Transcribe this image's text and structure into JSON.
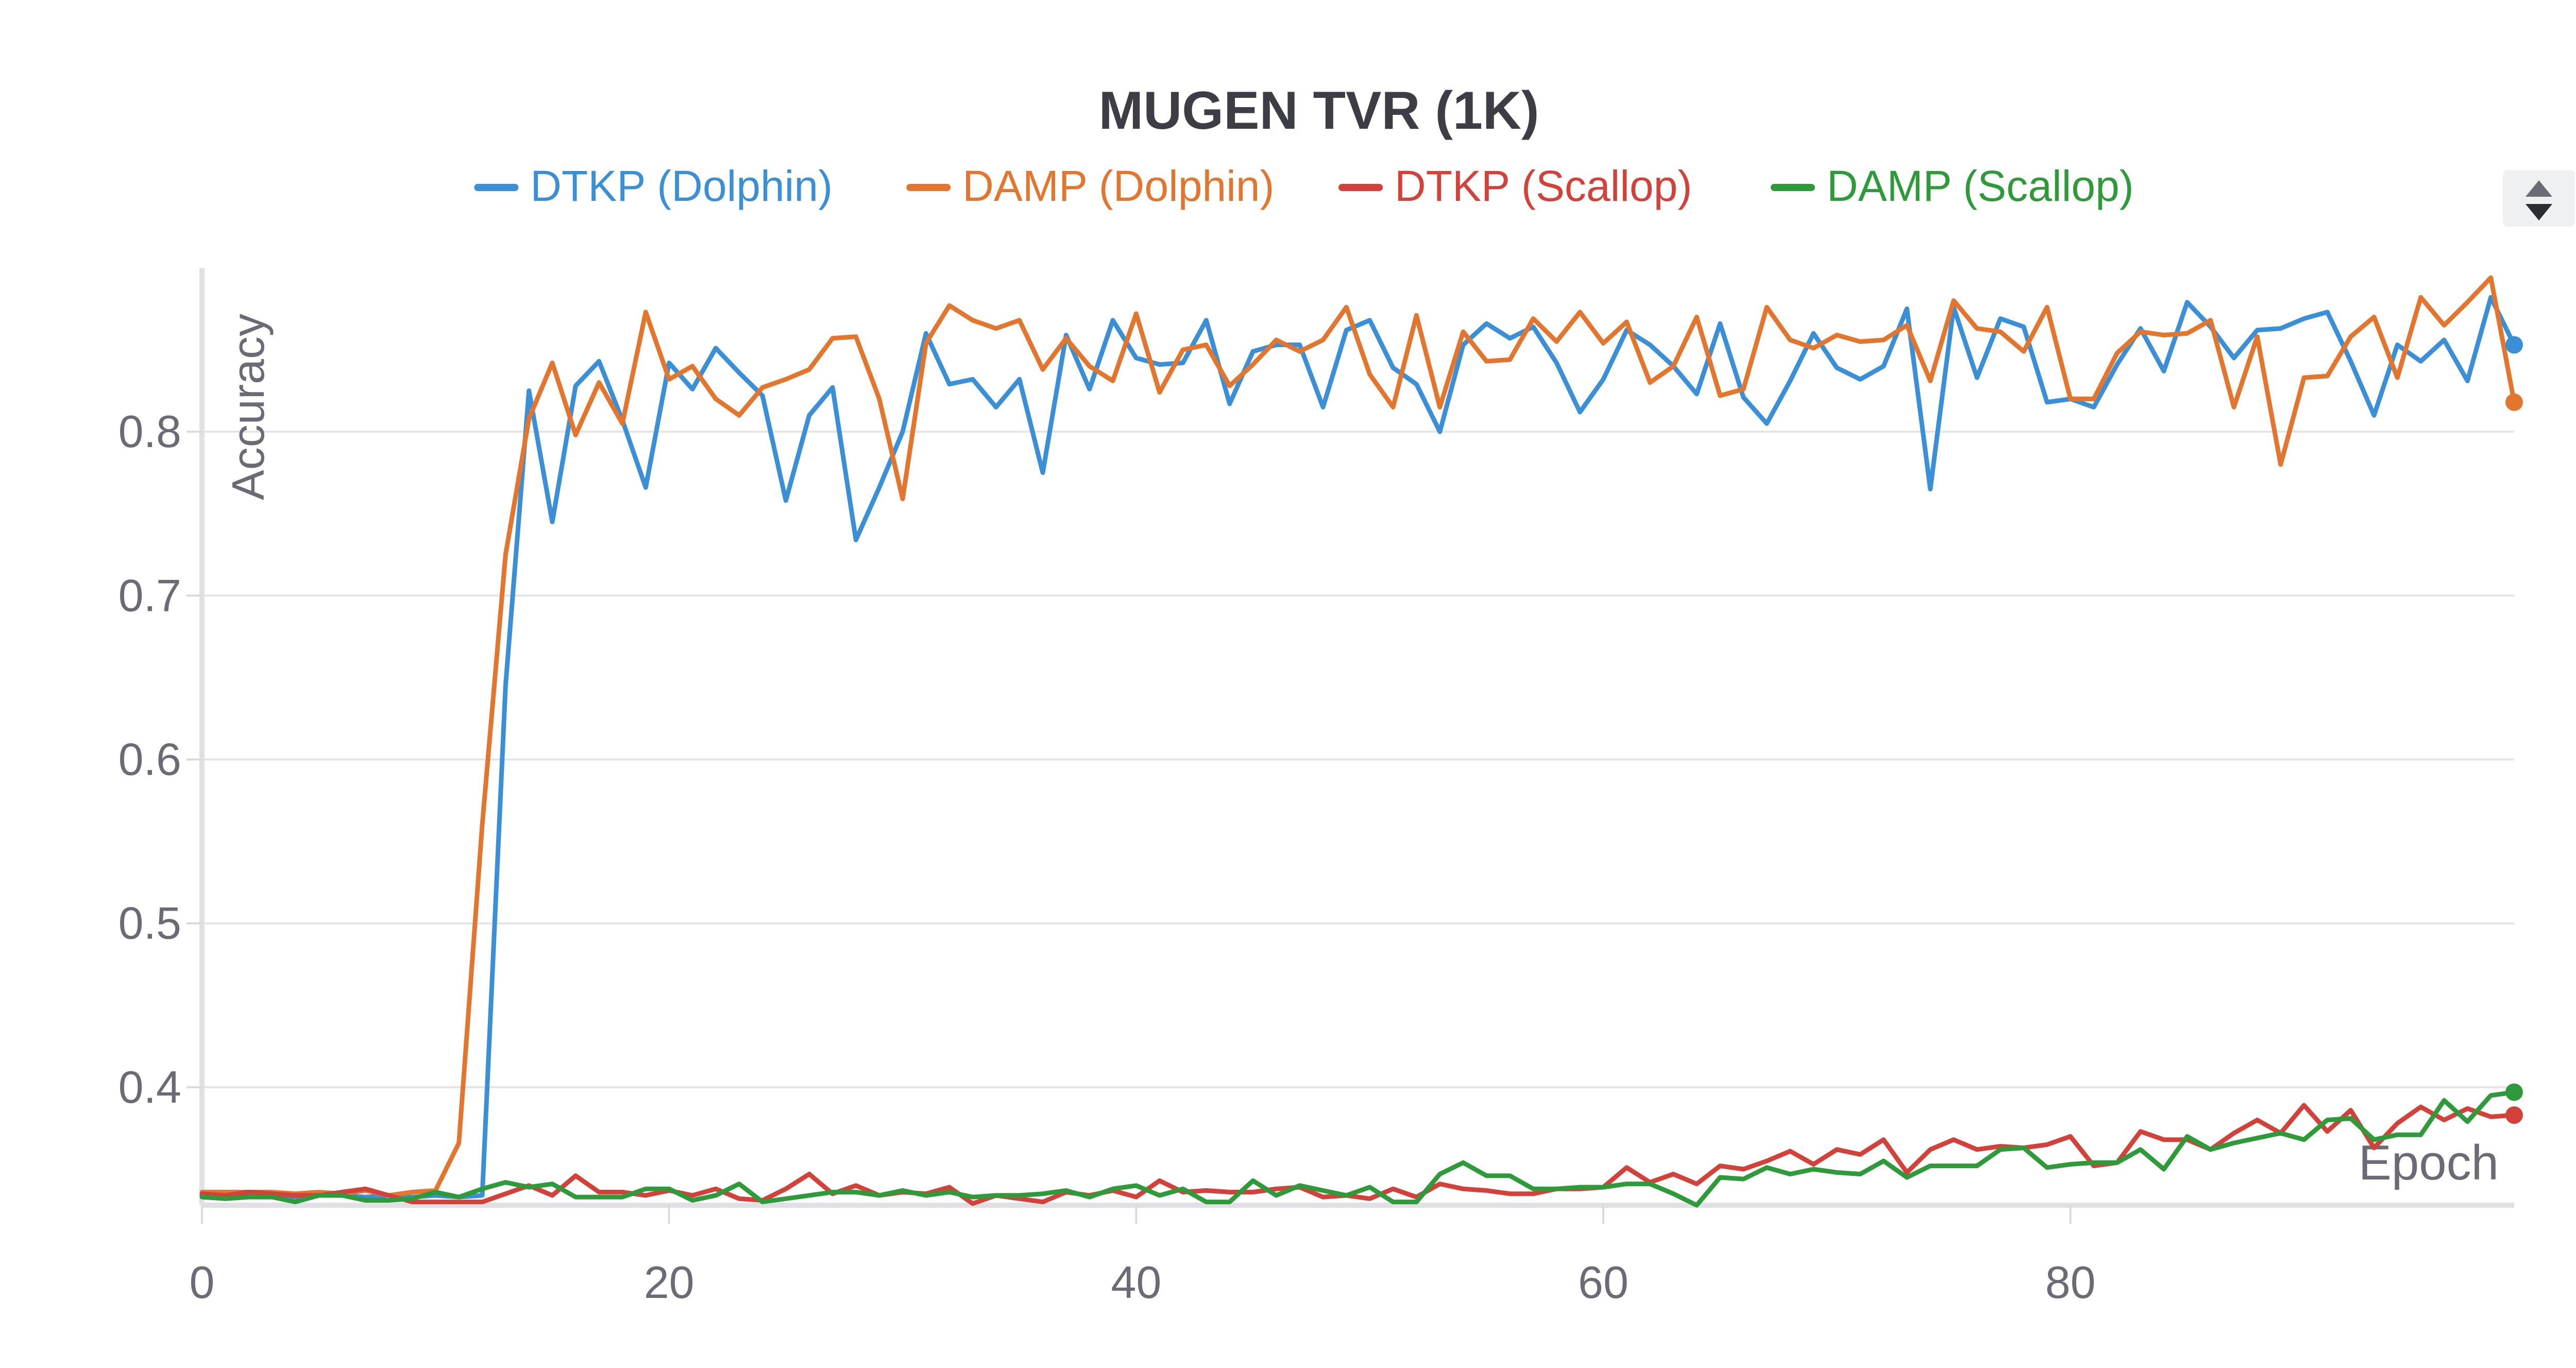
{
  "chart_data": {
    "type": "line",
    "title": "MUGEN TVR (1K)",
    "xlabel": "Epoch",
    "ylabel": "Accuracy",
    "xlim": [
      0,
      99
    ],
    "ylim": [
      0.328,
      0.9
    ],
    "grid": true,
    "legend_position": "top",
    "x_ticks": [
      0,
      20,
      40,
      60,
      80
    ],
    "y_ticks": [
      0.4,
      0.5,
      0.6,
      0.7,
      0.8
    ],
    "x": [
      0,
      1,
      2,
      3,
      4,
      5,
      6,
      7,
      8,
      9,
      10,
      11,
      12,
      13,
      14,
      15,
      16,
      17,
      18,
      19,
      20,
      21,
      22,
      23,
      24,
      25,
      26,
      27,
      28,
      29,
      30,
      31,
      32,
      33,
      34,
      35,
      36,
      37,
      38,
      39,
      40,
      41,
      42,
      43,
      44,
      45,
      46,
      47,
      48,
      49,
      50,
      51,
      52,
      53,
      54,
      55,
      56,
      57,
      58,
      59,
      60,
      61,
      62,
      63,
      64,
      65,
      66,
      67,
      68,
      69,
      70,
      71,
      72,
      73,
      74,
      75,
      76,
      77,
      78,
      79,
      80,
      81,
      82,
      83,
      84,
      85,
      86,
      87,
      88,
      89,
      90,
      91,
      92,
      93,
      94,
      95,
      96,
      97,
      98,
      99
    ],
    "series": [
      {
        "name": "DTKP (Dolphin)",
        "color": "#3a8fd6",
        "values": [
          0.334,
          0.333,
          0.335,
          0.334,
          0.333,
          0.334,
          0.334,
          0.333,
          0.334,
          0.333,
          0.334,
          0.333,
          0.334,
          0.645,
          0.825,
          0.745,
          0.828,
          0.843,
          0.807,
          0.766,
          0.842,
          0.826,
          0.851,
          0.836,
          0.822,
          0.758,
          0.81,
          0.827,
          0.734,
          0.766,
          0.8,
          0.86,
          0.829,
          0.832,
          0.815,
          0.832,
          0.775,
          0.859,
          0.826,
          0.868,
          0.845,
          0.841,
          0.842,
          0.868,
          0.817,
          0.849,
          0.853,
          0.853,
          0.815,
          0.862,
          0.868,
          0.839,
          0.829,
          0.8,
          0.853,
          0.866,
          0.857,
          0.864,
          0.842,
          0.812,
          0.832,
          0.862,
          0.853,
          0.84,
          0.823,
          0.866,
          0.821,
          0.805,
          0.831,
          0.86,
          0.839,
          0.832,
          0.84,
          0.875,
          0.765,
          0.876,
          0.833,
          0.869,
          0.864,
          0.818,
          0.82,
          0.815,
          0.841,
          0.863,
          0.837,
          0.879,
          0.864,
          0.845,
          0.862,
          0.863,
          0.869,
          0.873,
          0.843,
          0.81,
          0.853,
          0.843,
          0.856,
          0.831,
          0.882,
          0.853
        ]
      },
      {
        "name": "DAMP (Dolphin)",
        "color": "#e3762e",
        "values": [
          0.336,
          0.336,
          0.336,
          0.336,
          0.335,
          0.336,
          0.335,
          0.337,
          0.334,
          0.336,
          0.337,
          0.366,
          0.56,
          0.725,
          0.808,
          0.842,
          0.798,
          0.83,
          0.805,
          0.873,
          0.832,
          0.84,
          0.82,
          0.81,
          0.827,
          0.832,
          0.838,
          0.857,
          0.858,
          0.82,
          0.759,
          0.854,
          0.877,
          0.868,
          0.863,
          0.868,
          0.838,
          0.857,
          0.84,
          0.831,
          0.872,
          0.824,
          0.85,
          0.853,
          0.828,
          0.841,
          0.856,
          0.849,
          0.856,
          0.876,
          0.835,
          0.815,
          0.871,
          0.815,
          0.861,
          0.843,
          0.844,
          0.869,
          0.855,
          0.873,
          0.854,
          0.867,
          0.83,
          0.84,
          0.87,
          0.822,
          0.826,
          0.876,
          0.856,
          0.851,
          0.859,
          0.855,
          0.856,
          0.865,
          0.831,
          0.88,
          0.863,
          0.861,
          0.849,
          0.876,
          0.82,
          0.82,
          0.848,
          0.861,
          0.859,
          0.86,
          0.868,
          0.815,
          0.858,
          0.78,
          0.833,
          0.834,
          0.858,
          0.87,
          0.833,
          0.882,
          0.865,
          0.879,
          0.894,
          0.818
        ]
      },
      {
        "name": "DTKP (Scallop)",
        "color": "#d2413a",
        "values": [
          0.335,
          0.334,
          0.336,
          0.335,
          0.334,
          0.334,
          0.336,
          0.338,
          0.334,
          0.33,
          0.33,
          0.33,
          0.33,
          0.335,
          0.34,
          0.334,
          0.346,
          0.336,
          0.336,
          0.334,
          0.337,
          0.334,
          0.338,
          0.332,
          0.331,
          0.338,
          0.347,
          0.335,
          0.34,
          0.334,
          0.336,
          0.335,
          0.339,
          0.329,
          0.334,
          0.332,
          0.33,
          0.336,
          0.334,
          0.337,
          0.333,
          0.343,
          0.336,
          0.337,
          0.336,
          0.336,
          0.338,
          0.339,
          0.333,
          0.334,
          0.332,
          0.338,
          0.333,
          0.341,
          0.338,
          0.337,
          0.335,
          0.335,
          0.338,
          0.338,
          0.339,
          0.351,
          0.342,
          0.347,
          0.341,
          0.352,
          0.35,
          0.355,
          0.361,
          0.353,
          0.362,
          0.359,
          0.368,
          0.348,
          0.362,
          0.368,
          0.362,
          0.364,
          0.363,
          0.365,
          0.37,
          0.352,
          0.354,
          0.373,
          0.368,
          0.368,
          0.362,
          0.372,
          0.38,
          0.372,
          0.389,
          0.373,
          0.386,
          0.363,
          0.378,
          0.388,
          0.38,
          0.387,
          0.382,
          0.383
        ]
      },
      {
        "name": "DAMP (Scallop)",
        "color": "#2e9a3a",
        "values": [
          0.333,
          0.332,
          0.333,
          0.333,
          0.33,
          0.334,
          0.334,
          0.331,
          0.331,
          0.332,
          0.336,
          0.333,
          0.338,
          0.342,
          0.339,
          0.341,
          0.333,
          0.333,
          0.333,
          0.338,
          0.338,
          0.331,
          0.334,
          0.341,
          0.33,
          0.332,
          0.334,
          0.336,
          0.336,
          0.334,
          0.337,
          0.334,
          0.336,
          0.333,
          0.334,
          0.334,
          0.335,
          0.337,
          0.333,
          0.338,
          0.34,
          0.334,
          0.338,
          0.33,
          0.33,
          0.343,
          0.334,
          0.34,
          0.337,
          0.334,
          0.339,
          0.33,
          0.33,
          0.347,
          0.354,
          0.346,
          0.346,
          0.338,
          0.338,
          0.339,
          0.339,
          0.341,
          0.341,
          0.335,
          0.328,
          0.345,
          0.344,
          0.351,
          0.347,
          0.35,
          0.348,
          0.347,
          0.355,
          0.345,
          0.352,
          0.352,
          0.352,
          0.362,
          0.363,
          0.351,
          0.353,
          0.354,
          0.354,
          0.362,
          0.35,
          0.37,
          0.362,
          0.366,
          0.369,
          0.372,
          0.368,
          0.38,
          0.381,
          0.368,
          0.371,
          0.371,
          0.392,
          0.379,
          0.395,
          0.397
        ]
      }
    ]
  },
  "ui": {
    "legend_scroll_up_icon": "triangle-up",
    "legend_scroll_down_icon": "triangle-down"
  }
}
